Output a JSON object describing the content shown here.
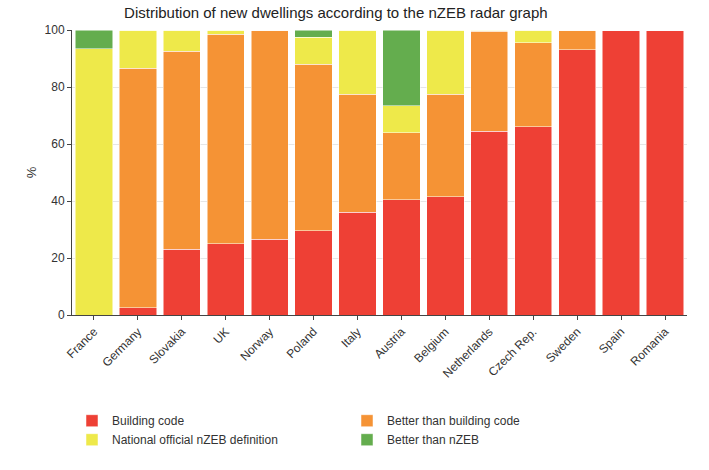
{
  "chart_data": {
    "type": "bar",
    "title": "Distribution of new dwellings according to the nZEB radar graph",
    "y_label": "%",
    "stacked": true,
    "grid": true,
    "legend": "bottom",
    "categories": [
      "France",
      "Germany",
      "Slovakia",
      "UK",
      "Norway",
      "Poland",
      "Italy",
      "Austria",
      "Belgium",
      "Netherlands",
      "Czech Rep.",
      "Sweden",
      "Spain",
      "Romania"
    ],
    "series": [
      {
        "name": "Building code",
        "color": "#ee4035",
        "values": [
          0,
          2.5,
          23,
          25,
          26.5,
          29.5,
          36,
          40.5,
          41.5,
          64.5,
          66,
          93,
          100,
          100
        ]
      },
      {
        "name": "Better than building code",
        "color": "#f59335",
        "values": [
          0,
          84,
          69.5,
          73.5,
          73.5,
          58.5,
          41.5,
          23.5,
          36,
          35,
          29.5,
          7,
          0,
          0
        ]
      },
      {
        "name": "National official nZEB definition",
        "color": "#eee94a",
        "values": [
          93.5,
          13.5,
          7.5,
          1.5,
          0,
          9.5,
          22.5,
          9.5,
          22.5,
          0.5,
          4.5,
          0,
          0,
          0
        ]
      },
      {
        "name": "Better than nZEB",
        "color": "#64ad4e",
        "values": [
          6.5,
          0,
          0,
          0,
          0,
          2.5,
          0,
          26.5,
          0,
          0,
          0,
          0,
          0,
          0
        ]
      }
    ],
    "ylim": [
      0,
      100
    ],
    "yticks": [
      0,
      20,
      40,
      60,
      80,
      100
    ]
  }
}
